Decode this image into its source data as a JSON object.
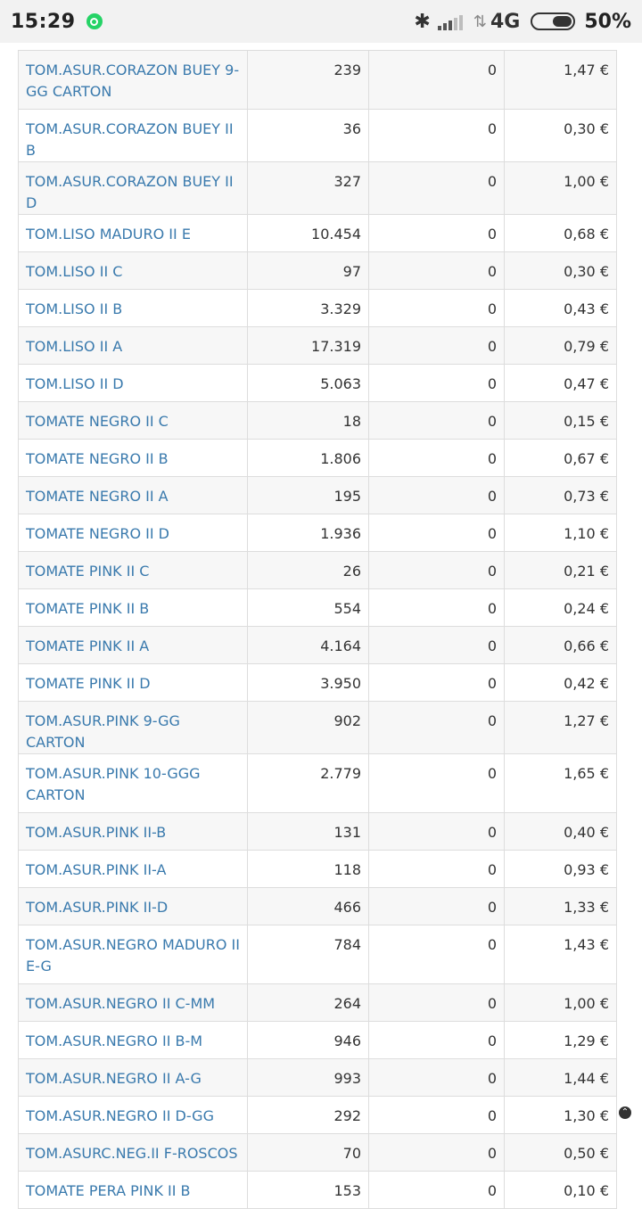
{
  "status_bar": {
    "time": "15:29",
    "network": "4G",
    "battery": "50%",
    "battery_level": 0.5
  },
  "rows": [
    {
      "name": "TOM.ASUR.CORAZON BUEY 9-GG CARTON",
      "qty": "239",
      "zero": "0",
      "price": "1,47 €",
      "tall": true
    },
    {
      "name": "TOM.ASUR.CORAZON BUEY II B",
      "qty": "36",
      "zero": "0",
      "price": "0,30 €"
    },
    {
      "name": "TOM.ASUR.CORAZON BUEY II D",
      "qty": "327",
      "zero": "0",
      "price": "1,00 €"
    },
    {
      "name": "TOM.LISO MADURO II E",
      "qty": "10.454",
      "zero": "0",
      "price": "0,68 €"
    },
    {
      "name": "TOM.LISO II C",
      "qty": "97",
      "zero": "0",
      "price": "0,30 €"
    },
    {
      "name": "TOM.LISO II B",
      "qty": "3.329",
      "zero": "0",
      "price": "0,43 €"
    },
    {
      "name": "TOM.LISO II A",
      "qty": "17.319",
      "zero": "0",
      "price": "0,79 €"
    },
    {
      "name": "TOM.LISO II D",
      "qty": "5.063",
      "zero": "0",
      "price": "0,47 €"
    },
    {
      "name": "TOMATE NEGRO II C",
      "qty": "18",
      "zero": "0",
      "price": "0,15 €"
    },
    {
      "name": "TOMATE NEGRO II B",
      "qty": "1.806",
      "zero": "0",
      "price": "0,67 €"
    },
    {
      "name": "TOMATE NEGRO II A",
      "qty": "195",
      "zero": "0",
      "price": "0,73 €"
    },
    {
      "name": "TOMATE NEGRO II D",
      "qty": "1.936",
      "zero": "0",
      "price": "1,10 €"
    },
    {
      "name": "TOMATE PINK II C",
      "qty": "26",
      "zero": "0",
      "price": "0,21 €"
    },
    {
      "name": "TOMATE PINK II B",
      "qty": "554",
      "zero": "0",
      "price": "0,24 €"
    },
    {
      "name": "TOMATE PINK II A",
      "qty": "4.164",
      "zero": "0",
      "price": "0,66 €"
    },
    {
      "name": "TOMATE PINK II D",
      "qty": "3.950",
      "zero": "0",
      "price": "0,42 €"
    },
    {
      "name": "TOM.ASUR.PINK 9-GG CARTON",
      "qty": "902",
      "zero": "0",
      "price": "1,27 €"
    },
    {
      "name": "TOM.ASUR.PINK 10-GGG CARTON",
      "qty": "2.779",
      "zero": "0",
      "price": "1,65 €",
      "tall": true
    },
    {
      "name": "TOM.ASUR.PINK II-B",
      "qty": "131",
      "zero": "0",
      "price": "0,40 €"
    },
    {
      "name": "TOM.ASUR.PINK II-A",
      "qty": "118",
      "zero": "0",
      "price": "0,93 €"
    },
    {
      "name": "TOM.ASUR.PINK II-D",
      "qty": "466",
      "zero": "0",
      "price": "1,33 €"
    },
    {
      "name": "TOM.ASUR.NEGRO MADURO II E-G",
      "qty": "784",
      "zero": "0",
      "price": "1,43 €",
      "tall": true
    },
    {
      "name": "TOM.ASUR.NEGRO II C-MM",
      "qty": "264",
      "zero": "0",
      "price": "1,00 €"
    },
    {
      "name": "TOM.ASUR.NEGRO II B-M",
      "qty": "946",
      "zero": "0",
      "price": "1,29 €"
    },
    {
      "name": "TOM.ASUR.NEGRO II A-G",
      "qty": "993",
      "zero": "0",
      "price": "1,44 €"
    },
    {
      "name": "TOM.ASUR.NEGRO II D-GG",
      "qty": "292",
      "zero": "0",
      "price": "1,30 €"
    },
    {
      "name": "TOM.ASURC.NEG.II F-ROSCOS",
      "qty": "70",
      "zero": "0",
      "price": "0,50 €"
    },
    {
      "name": "TOMATE PERA PINK II B",
      "qty": "153",
      "zero": "0",
      "price": "0,10 €"
    }
  ]
}
